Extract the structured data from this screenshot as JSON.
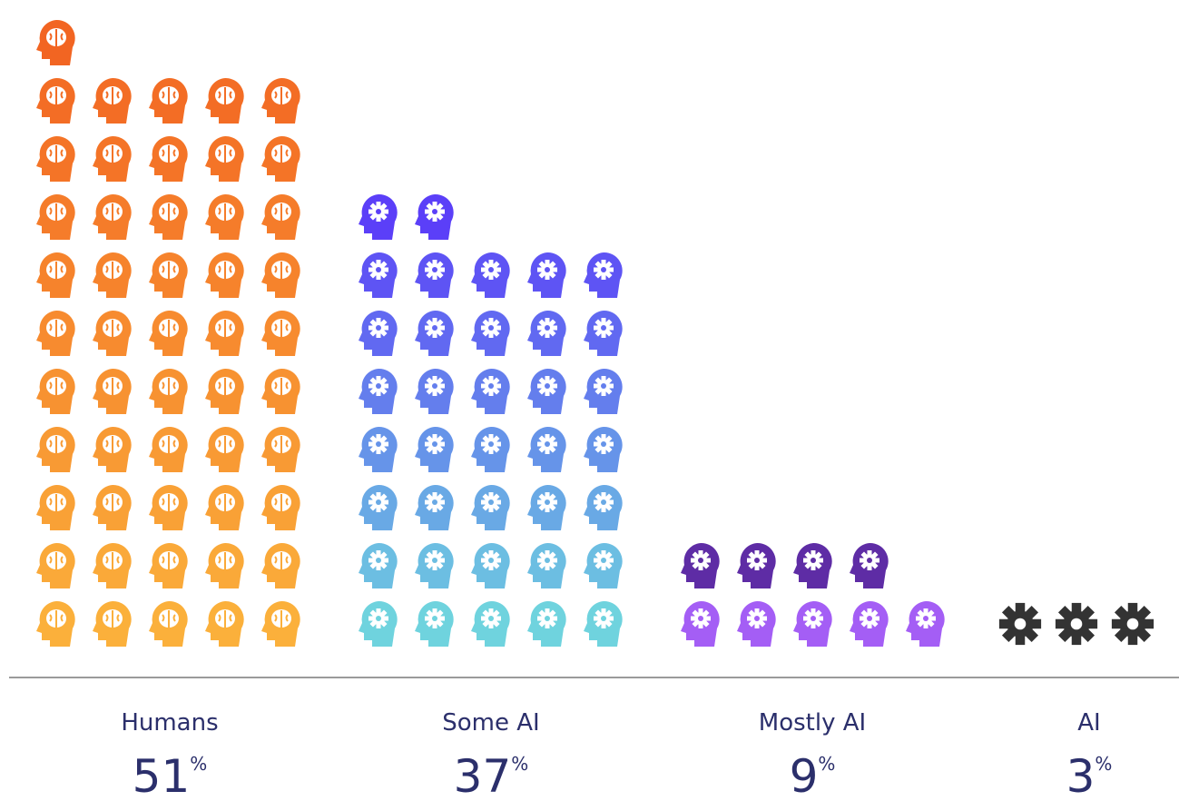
{
  "chart_data": {
    "type": "pictograph",
    "categories": [
      "Humans",
      "Some AI",
      "Mostly AI",
      "AI"
    ],
    "values": [
      51,
      37,
      9,
      3
    ],
    "value_labels": [
      "51%",
      "37%",
      "9%",
      "3%"
    ],
    "icons": [
      "brain-head",
      "gear-head",
      "gear-head",
      "gear"
    ],
    "colors": [
      [
        "#fbb03b",
        "#f26522"
      ],
      [
        "#6fd3de",
        "#5b3ff8"
      ],
      [
        "#a45ef5",
        "#5e2ca5"
      ],
      [
        "#333333",
        "#333333"
      ]
    ]
  }
}
